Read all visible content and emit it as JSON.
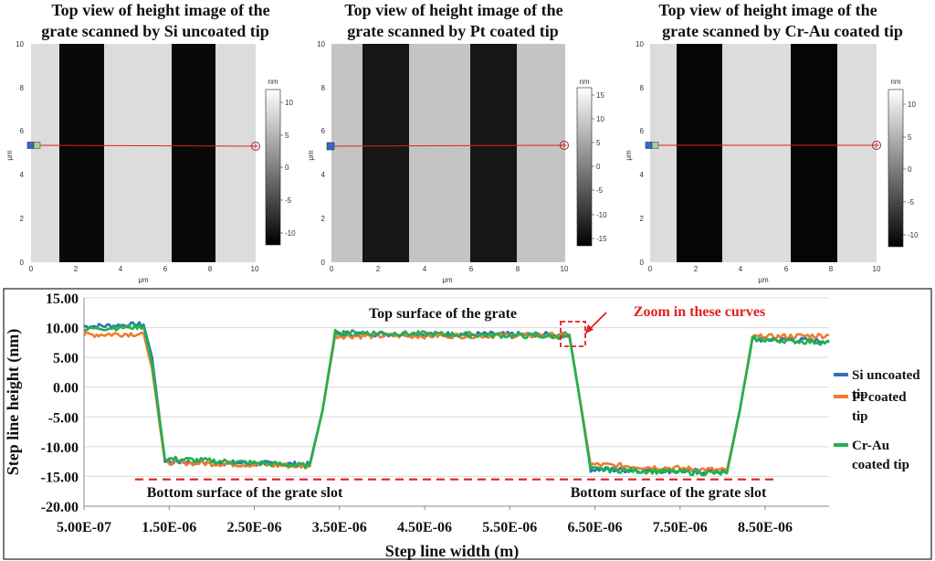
{
  "top_panels": [
    {
      "title_line1": "Top view of height image of the",
      "title_line2": "grate scanned by Si uncoated tip",
      "x_ticks": [
        "0",
        "2",
        "4",
        "6",
        "8",
        "10"
      ],
      "y_ticks": [
        "0",
        "2",
        "4",
        "6",
        "8",
        "10"
      ],
      "x_unit": "μm",
      "y_unit": "μm",
      "colorbar_unit": "nm",
      "colorbar_ticks": [
        "10",
        "5",
        "0",
        "-5",
        "-10"
      ],
      "colorbar_range": [
        -12,
        12
      ],
      "image_gray_light": "#dcdcdc",
      "image_gray_dark": "#080808"
    },
    {
      "title_line1": "Top view of height image of the",
      "title_line2": "grate scanned by Pt coated tip",
      "x_ticks": [
        "0",
        "2",
        "4",
        "6",
        "8",
        "10"
      ],
      "y_ticks": [
        "0",
        "2",
        "4",
        "6",
        "8",
        "10"
      ],
      "x_unit": "μm",
      "y_unit": "μm",
      "colorbar_unit": "nm",
      "colorbar_ticks": [
        "15",
        "10",
        "5",
        "0",
        "-5",
        "-10",
        "-15"
      ],
      "colorbar_range": [
        -17,
        17
      ],
      "image_gray_light": "#c4c4c4",
      "image_gray_dark": "#161616"
    },
    {
      "title_line1": "Top view of height image of the",
      "title_line2": "grate scanned by Cr-Au coated tip",
      "x_ticks": [
        "0",
        "2",
        "4",
        "6",
        "8",
        "10"
      ],
      "y_ticks": [
        "0",
        "2",
        "4",
        "6",
        "8",
        "10"
      ],
      "x_unit": "μm",
      "y_unit": "μm",
      "colorbar_unit": "nm",
      "colorbar_ticks": [
        "10",
        "5",
        "0",
        "-5",
        "-10"
      ],
      "colorbar_range": [
        -12,
        12
      ],
      "image_gray_light": "#dcdcdc",
      "image_gray_dark": "#050505"
    }
  ],
  "chart_data": {
    "type": "line",
    "xlabel": "Step line width (m)",
    "ylabel": "Step line height (nm)",
    "xlim": [
      5e-07,
      9.25e-06
    ],
    "ylim": [
      -20,
      15
    ],
    "x_tick_labels": [
      "5.00E-07",
      "1.50E-06",
      "2.50E-06",
      "3.50E-06",
      "4.50E-06",
      "5.50E-06",
      "6.50E-06",
      "7.50E-06",
      "8.50E-06"
    ],
    "y_tick_labels": [
      "15.00",
      "10.00",
      "5.00",
      "0.00",
      "-5.00",
      "-10.00",
      "-15.00",
      "-20.00"
    ],
    "grid": true,
    "legend_position": "right",
    "series": [
      {
        "name_line1": "Si uncoated",
        "name_line2": "tip",
        "color": "#2e75b6",
        "x": [
          5e-07,
          1.2e-06,
          1.3e-06,
          1.45e-06,
          3.15e-06,
          3.3e-06,
          3.45e-06,
          6.2e-06,
          6.3e-06,
          6.45e-06,
          8.05e-06,
          8.2e-06,
          8.35e-06,
          9.25e-06
        ],
        "y": [
          10.2,
          10.5,
          5.0,
          -12.5,
          -13.0,
          -4.0,
          9.0,
          8.8,
          0.0,
          -13.8,
          -14.2,
          -4.0,
          8.0,
          7.8
        ]
      },
      {
        "name_line1": "Pt coated",
        "name_line2": "tip",
        "color": "#ed7d31",
        "x": [
          5e-07,
          1.2e-06,
          1.3e-06,
          1.45e-06,
          3.15e-06,
          3.3e-06,
          3.45e-06,
          6.2e-06,
          6.3e-06,
          6.45e-06,
          8.05e-06,
          8.2e-06,
          8.35e-06,
          9.25e-06
        ],
        "y": [
          8.8,
          9.0,
          3.0,
          -12.6,
          -13.3,
          -4.0,
          8.6,
          8.7,
          0.0,
          -13.0,
          -14.0,
          -4.0,
          8.4,
          8.7
        ]
      },
      {
        "name_line1": "Cr-Au",
        "name_line2": "coated tip",
        "color": "#22b14c",
        "x": [
          5e-07,
          1.2e-06,
          1.3e-06,
          1.45e-06,
          3.15e-06,
          3.3e-06,
          3.45e-06,
          6.2e-06,
          6.3e-06,
          6.45e-06,
          8.05e-06,
          8.2e-06,
          8.35e-06,
          9.25e-06
        ],
        "y": [
          9.8,
          10.2,
          4.0,
          -12.0,
          -13.2,
          -4.0,
          9.2,
          8.5,
          0.0,
          -13.8,
          -14.5,
          -4.0,
          8.1,
          7.5
        ]
      }
    ],
    "reference_line": {
      "y": -15.5,
      "color": "#e02020",
      "style": "dashed"
    },
    "annotations": {
      "top_surface": "Top surface of the grate",
      "zoom_label": "Zoom in these curves",
      "bottom_left": "Bottom surface of the grate slot",
      "bottom_right": "Bottom surface of the grate slot",
      "zoom_color": "#e02020"
    }
  }
}
